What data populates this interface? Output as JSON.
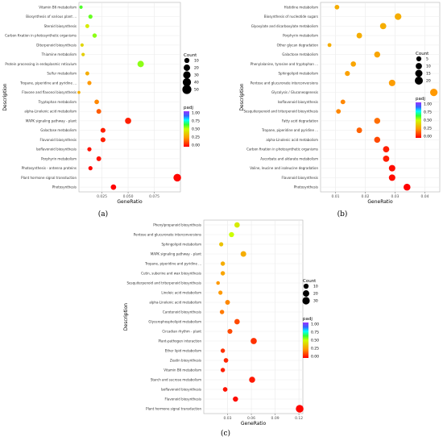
{
  "chart_data": [
    {
      "panel_label": "(a)",
      "type": "scatter",
      "xlabel": "GeneRatio",
      "ylabel": "Description",
      "xlim": [
        0.003,
        0.1
      ],
      "x_ticks": [
        0.025,
        0.05,
        0.075
      ],
      "x_tick_labels": [
        "0.025",
        "0.050",
        "0.075"
      ],
      "grid": true,
      "legend_position": "right",
      "size_legend": {
        "title": "Count",
        "values": [
          10,
          20,
          30,
          40,
          50
        ],
        "labels": [
          "10",
          "20",
          "30",
          "40",
          "50"
        ]
      },
      "color_legend": {
        "title": "padj",
        "min": 0,
        "max": 1,
        "ticks": [
          "1.00",
          "0.75",
          "0.50",
          "0.25",
          "0.00"
        ]
      },
      "categories": [
        "Vitamin B6 metabolism",
        "Biosynthesis of various plant ...",
        "Steroid biosynthesis",
        "Carbon fixation in photosynthetic organisms",
        "Diterpenoid biosynthesis",
        "Thiamine metabolism",
        "Protein processing in endoplasmic reticulum",
        "Sulfur metabolism",
        "Tropane, piperidine and pyridine ...",
        "Flavone and flavonol biosynthesis",
        "Tryptophan metabolism",
        "alpha-Linolenic acid metabolism",
        "MAPK signaling pathway - plant",
        "Galactose metabolism",
        "Flavonoid biosynthesis",
        "Isoflavonoid biosynthesis",
        "Porphyrin metabolism",
        "Photosynthesis - antenna proteins",
        "Plant hormone signal transduction",
        "Photosynthesis"
      ],
      "x": [
        0.005,
        0.014,
        0.011,
        0.018,
        0.006,
        0.007,
        0.062,
        0.011,
        0.013,
        0.003,
        0.02,
        0.022,
        0.05,
        0.026,
        0.026,
        0.013,
        0.022,
        0.014,
        0.097,
        0.036
      ],
      "count": [
        2,
        5,
        4,
        6,
        2,
        2,
        20,
        4,
        5,
        1,
        7,
        8,
        18,
        9,
        9,
        5,
        8,
        5,
        33,
        12
      ],
      "padj": [
        0.6,
        0.58,
        0.45,
        0.55,
        0.4,
        0.38,
        0.55,
        0.3,
        0.25,
        0.3,
        0.22,
        0.15,
        0.05,
        0.05,
        0.05,
        0.03,
        0.03,
        0.01,
        0.01,
        0.0
      ]
    },
    {
      "panel_label": "(b)",
      "type": "scatter",
      "xlabel": "GeneRatio",
      "ylabel": "Description",
      "xlim": [
        0.005,
        0.045
      ],
      "x_ticks": [
        0.01,
        0.02,
        0.03,
        0.04
      ],
      "x_tick_labels": [
        "0.01",
        "0.02",
        "0.03",
        "0.04"
      ],
      "grid": true,
      "legend_position": "right",
      "size_legend": {
        "title": "Count",
        "values": [
          5,
          10,
          15,
          20
        ],
        "labels": [
          "5",
          "10",
          "15",
          "20"
        ]
      },
      "color_legend": {
        "title": "padj",
        "min": 0,
        "max": 1,
        "ticks": [
          "1.00",
          "0.75",
          "0.50",
          "0.25",
          "0.00"
        ]
      },
      "categories": [
        "Histidine metabolism",
        "Biosynthesis of nucleotide sugars",
        "Glyoxylate and dicarboxylate metabolism",
        "Porphyrin metabolism",
        "Other glycan degradation",
        "Galactose metabolism",
        "Phenylalanine, tyrosine and tryptophan ...",
        "Sphingolipid metabolism",
        "Pentose and glucuronate interconversions",
        "Glycolysis / Gluconeogenesis",
        "Isoflavonoid biosynthesis",
        "Sesquiterpenoid and triterpenoid biosynthesis",
        "Fatty acid degradation",
        "Tropane, piperidine and pyridine ...",
        "alpha-Linolenic acid metabolism",
        "Carbon fixation in photosynthetic organisms",
        "Ascorbate and aldarate metabolism",
        "Valine, leucine and isoleucine degradation",
        "Flavonoid biosynthesis",
        "Photosynthesis"
      ],
      "x": [
        0.0105,
        0.031,
        0.026,
        0.018,
        0.008,
        0.024,
        0.016,
        0.014,
        0.029,
        0.043,
        0.0125,
        0.011,
        0.024,
        0.018,
        0.024,
        0.027,
        0.027,
        0.029,
        0.029,
        0.034
      ],
      "count": [
        4,
        12,
        10,
        7,
        2,
        9,
        6,
        5,
        11,
        16,
        4,
        4,
        9,
        7,
        9,
        10,
        10,
        11,
        11,
        13
      ],
      "padj": [
        0.3,
        0.3,
        0.3,
        0.3,
        0.3,
        0.28,
        0.28,
        0.27,
        0.26,
        0.25,
        0.22,
        0.22,
        0.18,
        0.16,
        0.12,
        0.05,
        0.05,
        0.02,
        0.02,
        0.0
      ]
    },
    {
      "panel_label": "(c)",
      "type": "scatter",
      "xlabel": "GeneRatio",
      "ylabel": "Description",
      "xlim": [
        0.0,
        0.125
      ],
      "x_ticks": [
        0.03,
        0.06,
        0.09,
        0.12
      ],
      "x_tick_labels": [
        "0.03",
        "0.06",
        "0.09",
        "0.12"
      ],
      "grid": true,
      "legend_position": "right",
      "size_legend": {
        "title": "Count",
        "values": [
          10,
          20,
          30
        ],
        "labels": [
          "10",
          "20",
          "30"
        ]
      },
      "color_legend": {
        "title": "padj",
        "min": 0,
        "max": 1,
        "ticks": [
          "1.00",
          "0.75",
          "0.50",
          "0.25",
          "0.00"
        ]
      },
      "categories": [
        "Phenylpropanoid biosynthesis",
        "Pentose and glucuronate interconversions",
        "Sphingolipid metabolism",
        "MAPK signaling pathway - plant",
        "Tropane, piperidine and pyridine ...",
        "Cutin, suberine and wax biosynthesis",
        "Sesquiterpenoid and triterpenoid biosynthesis",
        "Linoleic acid metabolism",
        "alpha-Linolenic acid metabolism",
        "Carotenoid biosynthesis",
        "Glycerophospholipid metabolism",
        "Circadian rhythm - plant",
        "Plant-pathogen interaction",
        "Ether lipid metabolism",
        "Zeatin biosynthesis",
        "Vitamin B6 metabolism",
        "Starch and sucrose metabolism",
        "Isoflavonoid biosynthesis",
        "Flavonoid biosynthesis",
        "Plant hormone signal transduction"
      ],
      "x": [
        0.042,
        0.035,
        0.022,
        0.05,
        0.024,
        0.024,
        0.018,
        0.021,
        0.03,
        0.023,
        0.042,
        0.033,
        0.063,
        0.024,
        0.028,
        0.024,
        0.061,
        0.027,
        0.04,
        0.121
      ],
      "count": [
        12,
        10,
        5,
        14,
        6,
        6,
        3,
        5,
        8,
        6,
        12,
        9,
        18,
        6,
        7,
        6,
        17,
        7,
        11,
        33
      ],
      "padj": [
        0.45,
        0.5,
        0.35,
        0.3,
        0.3,
        0.28,
        0.25,
        0.25,
        0.22,
        0.2,
        0.12,
        0.12,
        0.08,
        0.08,
        0.06,
        0.05,
        0.04,
        0.03,
        0.02,
        0.01
      ]
    }
  ]
}
